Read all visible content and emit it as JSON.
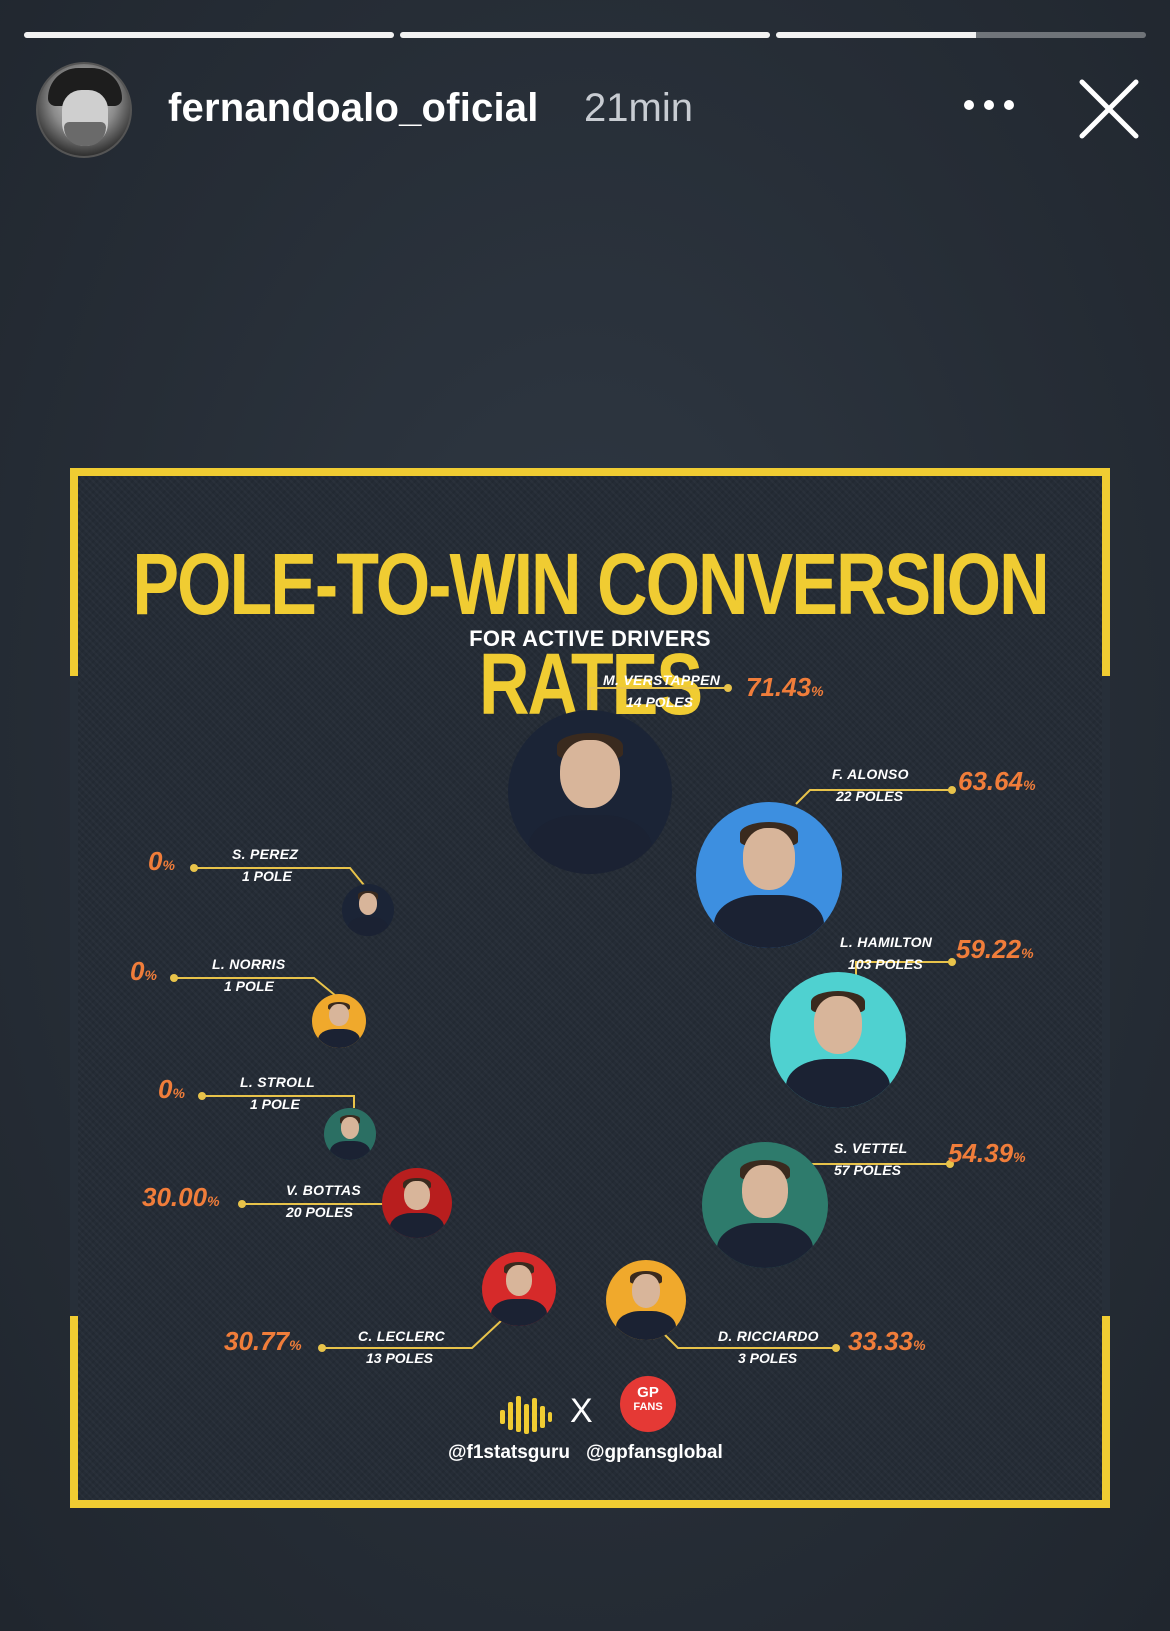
{
  "story": {
    "username": "fernandoalo_oficial",
    "timestamp": "21min",
    "progress": [
      1,
      1,
      0.54
    ]
  },
  "infographic": {
    "title": "POLE-TO-WIN CONVERSION RATES",
    "subtitle": "FOR ACTIVE DRIVERS",
    "drivers": [
      {
        "name": "M. VERSTAPPEN",
        "poles": "14 POLES",
        "rate": "71.43",
        "unit": "%",
        "color": "#1b2436"
      },
      {
        "name": "F. ALONSO",
        "poles": "22 POLES",
        "rate": "63.64",
        "unit": "%",
        "color": "#3d8fe0"
      },
      {
        "name": "L. HAMILTON",
        "poles": "103 POLES",
        "rate": "59.22",
        "unit": "%",
        "color": "#4fd1d0"
      },
      {
        "name": "S. VETTEL",
        "poles": "57 POLES",
        "rate": "54.39",
        "unit": "%",
        "color": "#2e7b6c"
      },
      {
        "name": "D. RICCIARDO",
        "poles": "3 POLES",
        "rate": "33.33",
        "unit": "%",
        "color": "#f0a92c"
      },
      {
        "name": "C. LECLERC",
        "poles": "13 POLES",
        "rate": "30.77",
        "unit": "%",
        "color": "#d62a2a"
      },
      {
        "name": "V. BOTTAS",
        "poles": "20 POLES",
        "rate": "30.00",
        "unit": "%",
        "color": "#b81e1e"
      },
      {
        "name": "L. STROLL",
        "poles": "1 POLE",
        "rate": "0",
        "unit": "%",
        "color": "#2b6f63"
      },
      {
        "name": "L. NORRIS",
        "poles": "1 POLE",
        "rate": "0",
        "unit": "%",
        "color": "#f0a92c"
      },
      {
        "name": "S. PEREZ",
        "poles": "1 POLE",
        "rate": "0",
        "unit": "%",
        "color": "#1b2436"
      }
    ],
    "footer": {
      "separator": "X",
      "logo_text_top": "GP",
      "logo_text_bottom": "FANS",
      "handle_left": "@f1statsguru",
      "handle_right": "@gpfansglobal"
    }
  },
  "colors": {
    "accent": "#f0cc32",
    "percent": "#f07d3a",
    "background": "#262d36"
  }
}
